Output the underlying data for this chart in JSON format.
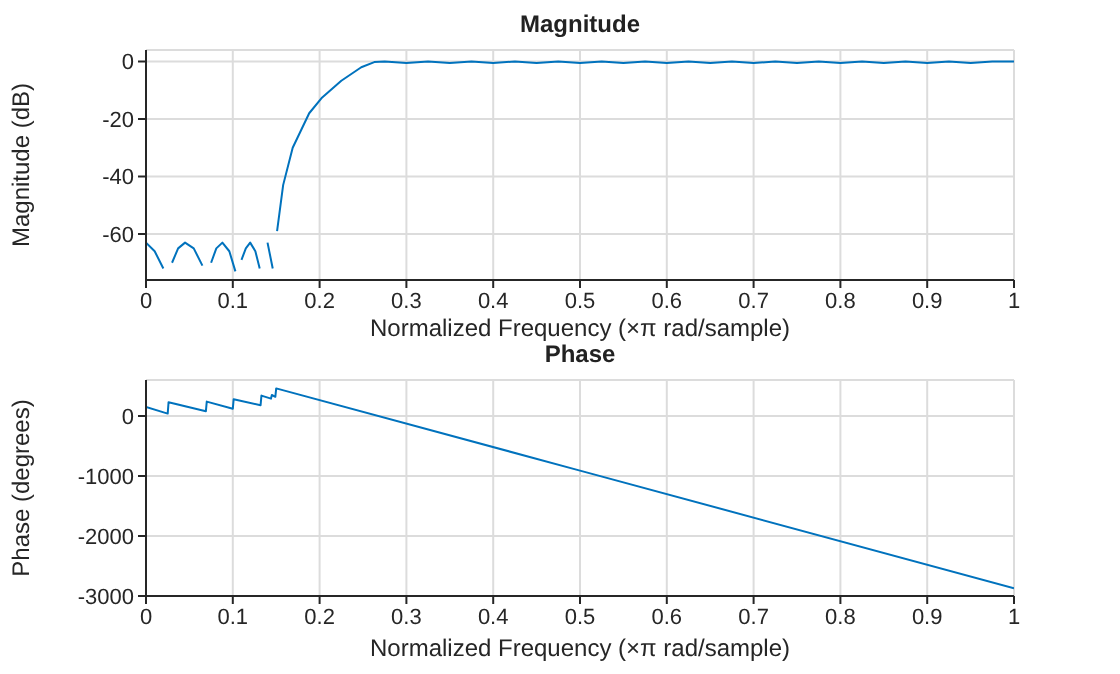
{
  "chart_data": [
    {
      "type": "line",
      "title": "Magnitude",
      "xlabel": "Normalized Frequency  (×π rad/sample)",
      "ylabel": "Magnitude (dB)",
      "xlim": [
        0,
        1
      ],
      "xticks": [
        0,
        0.1,
        0.2,
        0.3,
        0.4,
        0.5,
        0.6,
        0.7,
        0.8,
        0.9,
        1
      ],
      "ylim": [
        -76,
        4
      ],
      "yticks": [
        -60,
        -40,
        -20,
        0
      ],
      "grid": true,
      "series": [
        {
          "color": "#0072bd",
          "x": [
            0,
            0.01,
            0.02,
            0.025,
            0.03,
            0.037,
            0.045,
            0.055,
            0.065,
            0.07,
            0.075,
            0.081,
            0.088,
            0.096,
            0.103,
            0.106,
            0.11,
            0.115,
            0.12,
            0.126,
            0.131,
            0.134,
            0.14,
            0.146,
            0.149,
            0.151,
            0.158,
            0.169,
            0.188,
            0.203,
            0.225,
            0.248,
            0.263,
            0.275,
            0.3,
            0.325,
            0.35,
            0.375,
            0.4,
            0.425,
            0.45,
            0.475,
            0.5,
            0.525,
            0.55,
            0.575,
            0.6,
            0.625,
            0.65,
            0.675,
            0.7,
            0.725,
            0.75,
            0.775,
            0.8,
            0.825,
            0.85,
            0.875,
            0.9,
            0.925,
            0.95,
            0.975,
            1
          ],
          "values": [
            -63,
            -66,
            -72,
            null,
            -70,
            -65,
            -63,
            -65,
            -71,
            null,
            -70,
            -65,
            -63,
            -66,
            -73,
            null,
            -69,
            -65,
            -63,
            -66,
            -72,
            null,
            -63,
            -72,
            null,
            -59,
            -43,
            -30,
            -18,
            -12.5,
            -6.7,
            -2,
            -0.2,
            0,
            -0.5,
            0,
            -0.5,
            0,
            -0.5,
            0,
            -0.5,
            0,
            -0.5,
            0,
            -0.5,
            0,
            -0.5,
            0,
            -0.5,
            0,
            -0.5,
            0,
            -0.5,
            0,
            -0.5,
            0,
            -0.5,
            0,
            -0.5,
            0,
            -0.5,
            0,
            0
          ]
        }
      ]
    },
    {
      "type": "line",
      "title": "Phase",
      "xlabel": "Normalized Frequency  (×π rad/sample)",
      "ylabel": "Phase (degrees)",
      "xlim": [
        0,
        1
      ],
      "xticks": [
        0,
        0.1,
        0.2,
        0.3,
        0.4,
        0.5,
        0.6,
        0.7,
        0.8,
        0.9,
        1
      ],
      "ylim": [
        -3000,
        600
      ],
      "yticks": [
        -3000,
        -2000,
        -1000,
        0
      ],
      "grid": true,
      "series": [
        {
          "color": "#0072bd",
          "x": [
            0,
            0.025,
            0.026,
            0.069,
            0.07,
            0.1,
            0.101,
            0.132,
            0.133,
            0.144,
            0.145,
            0.149,
            0.15,
            0.5,
            1
          ],
          "values": [
            150,
            40,
            230,
            80,
            240,
            120,
            280,
            180,
            340,
            290,
            350,
            320,
            460,
            -910,
            -2870
          ]
        }
      ]
    }
  ]
}
